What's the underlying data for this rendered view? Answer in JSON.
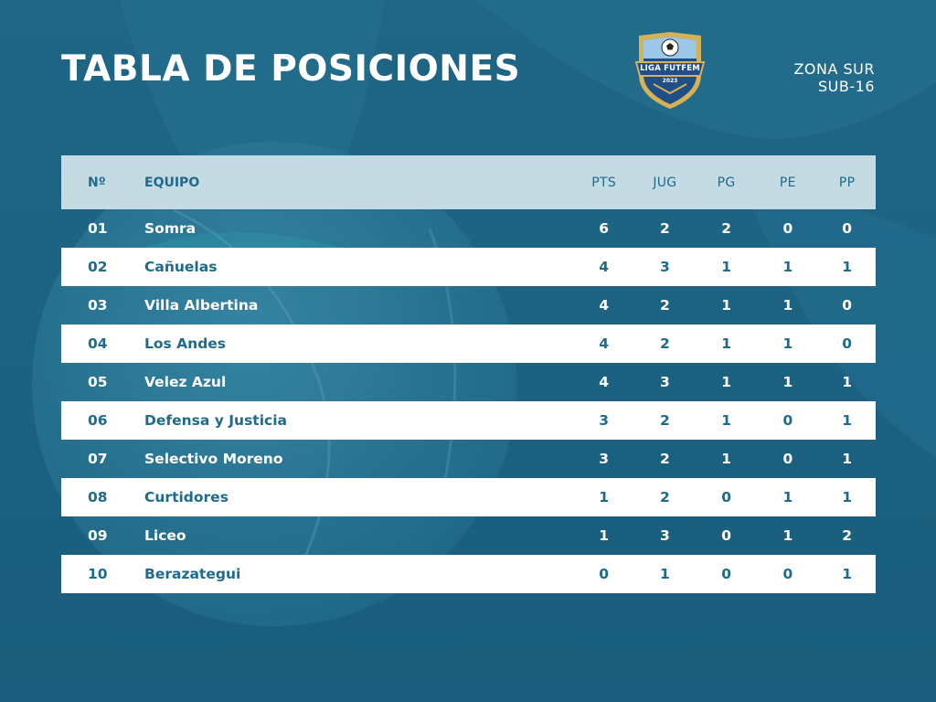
{
  "header": {
    "title": "TABLA DE POSICIONES",
    "zone": "ZONA SUR",
    "category": "SUB-16"
  },
  "logo": {
    "name": "LIGA FUTFEM",
    "year": "2023",
    "icon": "soccer-ball-shield-icon"
  },
  "table": {
    "columns": {
      "pos": "Nº",
      "team": "EQUIPO",
      "pts": "PTS",
      "jug": "JUG",
      "pg": "PG",
      "pe": "PE",
      "pp": "PP"
    },
    "rows": [
      {
        "pos": "01",
        "team": "Somra",
        "pts": "6",
        "jug": "2",
        "pg": "2",
        "pe": "0",
        "pp": "0"
      },
      {
        "pos": "02",
        "team": "Cañuelas",
        "pts": "4",
        "jug": "3",
        "pg": "1",
        "pe": "1",
        "pp": "1"
      },
      {
        "pos": "03",
        "team": "Villa Albertina",
        "pts": "4",
        "jug": "2",
        "pg": "1",
        "pe": "1",
        "pp": "0"
      },
      {
        "pos": "04",
        "team": "Los Andes",
        "pts": "4",
        "jug": "2",
        "pg": "1",
        "pe": "1",
        "pp": "0"
      },
      {
        "pos": "05",
        "team": "Velez Azul",
        "pts": "4",
        "jug": "3",
        "pg": "1",
        "pe": "1",
        "pp": "1"
      },
      {
        "pos": "06",
        "team": "Defensa y Justicia",
        "pts": "3",
        "jug": "2",
        "pg": "1",
        "pe": "0",
        "pp": "1"
      },
      {
        "pos": "07",
        "team": "Selectivo Moreno",
        "pts": "3",
        "jug": "2",
        "pg": "1",
        "pe": "0",
        "pp": "1"
      },
      {
        "pos": "08",
        "team": "Curtidores",
        "pts": "1",
        "jug": "2",
        "pg": "0",
        "pe": "1",
        "pp": "1"
      },
      {
        "pos": "09",
        "team": "Liceo",
        "pts": "1",
        "jug": "3",
        "pg": "0",
        "pe": "1",
        "pp": "2"
      },
      {
        "pos": "10",
        "team": "Berazategui",
        "pts": "0",
        "jug": "1",
        "pg": "0",
        "pe": "0",
        "pp": "1"
      }
    ]
  },
  "colors": {
    "background": "#1c6180",
    "header_row": "#c5dbe3",
    "accent_text": "#1e6b8c",
    "row_alt": "#ffffff",
    "logo_gold": "#d6b256"
  }
}
